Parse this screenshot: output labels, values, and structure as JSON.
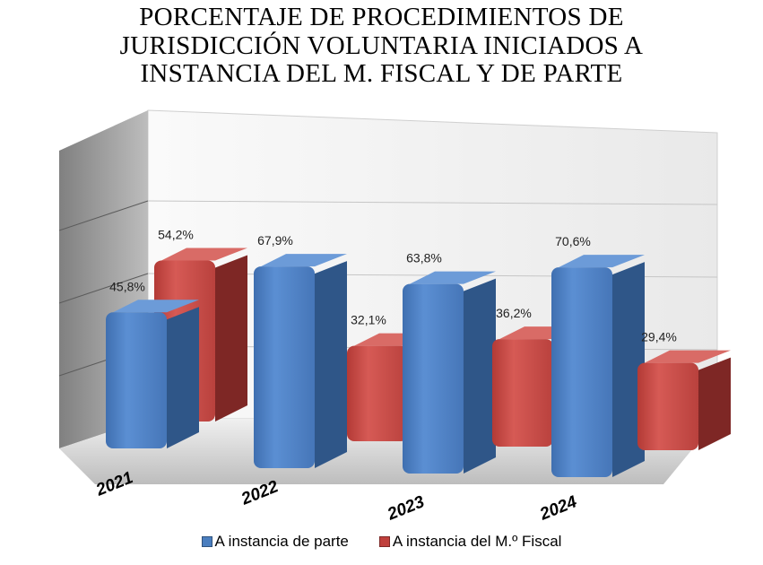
{
  "chart_data": {
    "type": "bar",
    "title_lines": [
      "PORCENTAJE DE PROCEDIMIENTOS DE",
      "JURISDICCIÓN VOLUNTARIA INICIADOS A",
      "INSTANCIA DEL M. FISCAL Y DE PARTE"
    ],
    "categories": [
      "2021",
      "2022",
      "2023",
      "2024"
    ],
    "series": [
      {
        "name": "A instancia de parte",
        "values": [
          45.8,
          67.9,
          63.8,
          70.6
        ],
        "labels": [
          "45,8%",
          "67,9%",
          "63,8%",
          "70,6%"
        ],
        "color": "#4a7ebf"
      },
      {
        "name": "A instancia del M.º Fiscal",
        "values": [
          54.2,
          32.1,
          36.2,
          29.4
        ],
        "labels": [
          "54,2%",
          "32,1%",
          "36,2%",
          "29,4%"
        ],
        "color": "#c0403c"
      }
    ],
    "ylim": [
      0,
      80
    ],
    "grid": true,
    "legend_position": "bottom",
    "three_d": true
  }
}
